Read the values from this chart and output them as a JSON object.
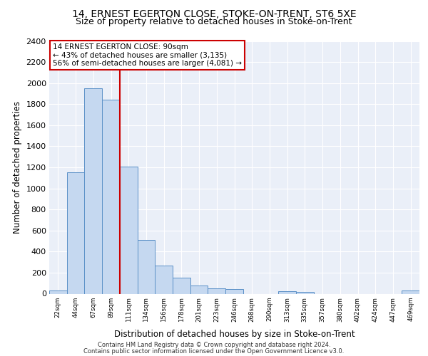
{
  "title_line1": "14, ERNEST EGERTON CLOSE, STOKE-ON-TRENT, ST6 5XE",
  "title_line2": "Size of property relative to detached houses in Stoke-on-Trent",
  "xlabel": "Distribution of detached houses by size in Stoke-on-Trent",
  "ylabel": "Number of detached properties",
  "categories": [
    "22sqm",
    "44sqm",
    "67sqm",
    "89sqm",
    "111sqm",
    "134sqm",
    "156sqm",
    "178sqm",
    "201sqm",
    "223sqm",
    "246sqm",
    "268sqm",
    "290sqm",
    "313sqm",
    "335sqm",
    "357sqm",
    "380sqm",
    "402sqm",
    "424sqm",
    "447sqm",
    "469sqm"
  ],
  "values": [
    30,
    1150,
    1950,
    1840,
    1210,
    510,
    265,
    155,
    80,
    50,
    45,
    0,
    0,
    25,
    18,
    0,
    0,
    0,
    0,
    0,
    30
  ],
  "bar_color": "#c5d8f0",
  "bar_edge_color": "#5b90c7",
  "annotation_text": "14 ERNEST EGERTON CLOSE: 90sqm\n← 43% of detached houses are smaller (3,135)\n56% of semi-detached houses are larger (4,081) →",
  "annotation_box_color": "#ffffff",
  "annotation_box_edge_color": "#cc0000",
  "vline_color": "#cc0000",
  "vline_x_index": 3,
  "footer_line1": "Contains HM Land Registry data © Crown copyright and database right 2024.",
  "footer_line2": "Contains public sector information licensed under the Open Government Licence v3.0.",
  "ylim": [
    0,
    2400
  ],
  "plot_bg_color": "#eaeff8",
  "grid_color": "#ffffff"
}
